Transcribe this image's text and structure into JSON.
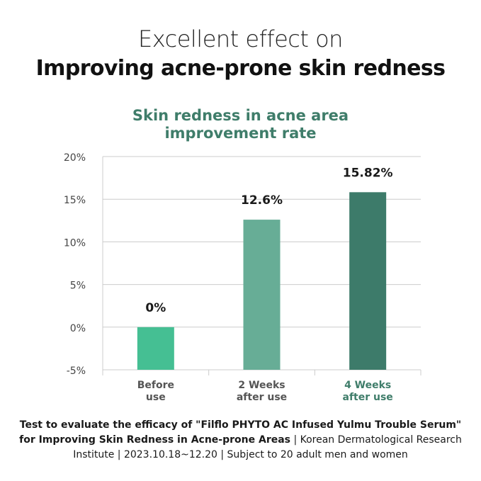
{
  "headline": {
    "line1": "Excellent effect on",
    "line2": "Improving acne-prone skin redness"
  },
  "chart_data": {
    "type": "bar",
    "title_lines": [
      "Skin redness in acne area",
      "improvement rate"
    ],
    "categories": [
      [
        "Before",
        "use"
      ],
      [
        "2 Weeks",
        "after use"
      ],
      [
        "4 Weeks",
        "after use"
      ]
    ],
    "values": [
      0,
      12.6,
      15.82
    ],
    "data_labels": [
      "0%",
      "12.6%",
      "15.82%"
    ],
    "y_tick_labels": [
      "20%",
      "15%",
      "10%",
      "5%",
      "0%",
      "-5%"
    ],
    "ylim": [
      -5,
      20
    ],
    "grid": true,
    "colors": {
      "bars": [
        "#45bf93",
        "#67ad96",
        "#3d7b6a"
      ],
      "highlight_label": "#3f7d6a",
      "tick_label": "#444444",
      "category_label": "#555555",
      "grid": "#cccccc"
    }
  },
  "footnote": {
    "bold_part": "Test to evaluate the efficacy of \"Filflo PHYTO AC Infused Yulmu Trouble Serum\" for Improving Skin Redness in Acne-prone Areas",
    "normal_part": " | Korean Dermatological Research Institute | 2023.10.18~12.20 | Subject to 20 adult men and women"
  }
}
